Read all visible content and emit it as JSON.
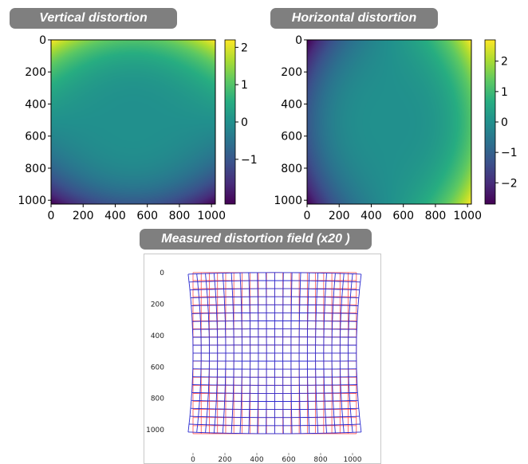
{
  "panels": {
    "vertical": {
      "title": "Vertical distortion"
    },
    "horizontal": {
      "title": "Horizontal distortion"
    },
    "field": {
      "title": "Measured distortion field (x20 )"
    }
  },
  "colormap": [
    "#440154",
    "#472c7a",
    "#3b518b",
    "#2c718e",
    "#21908d",
    "#27ad81",
    "#5cc863",
    "#aadc32",
    "#fde725"
  ],
  "colors": {
    "reference_grid": "#ff4d4d",
    "distorted_grid": "#2a2ad0"
  },
  "chart_data": [
    {
      "type": "heatmap",
      "title": "Vertical distortion",
      "x_ticks": [
        "0",
        "200",
        "400",
        "600",
        "800",
        "1000"
      ],
      "y_ticks": [
        "0",
        "200",
        "400",
        "600",
        "800",
        "1000"
      ],
      "xlim": [
        0,
        1024
      ],
      "ylim": [
        1024,
        0
      ],
      "colorbar_ticks": [
        "2",
        "1",
        "0",
        "−1"
      ],
      "colorbar_values": [
        2,
        1,
        0,
        -1
      ],
      "value_range": [
        -2.2,
        2.2
      ],
      "corner_values": {
        "top_left": 2.2,
        "top_right": 2.2,
        "bottom_left": -2.2,
        "bottom_right": -2.2
      }
    },
    {
      "type": "heatmap",
      "title": "Horizontal distortion",
      "x_ticks": [
        "0",
        "200",
        "400",
        "600",
        "800",
        "1000"
      ],
      "y_ticks": [
        "0",
        "200",
        "400",
        "600",
        "800",
        "1000"
      ],
      "xlim": [
        0,
        1024
      ],
      "ylim": [
        1024,
        0
      ],
      "colorbar_ticks": [
        "2",
        "1",
        "0",
        "−1",
        "−2"
      ],
      "colorbar_values": [
        2,
        1,
        0,
        -1,
        -2
      ],
      "value_range": [
        -2.7,
        2.7
      ],
      "corner_values": {
        "top_left": -2.7,
        "top_right": 2.7,
        "bottom_left": -2.7,
        "bottom_right": 2.7
      }
    },
    {
      "type": "line",
      "title": "Measured distortion field (x20 )",
      "x_ticks": [
        "0",
        "200",
        "400",
        "600",
        "800",
        "1000"
      ],
      "y_ticks": [
        "0",
        "200",
        "400",
        "600",
        "800",
        "1000"
      ],
      "xlim": [
        -60,
        1100
      ],
      "ylim": [
        1080,
        -60
      ],
      "grid_lines": 20,
      "grid_range": [
        0,
        1024
      ],
      "series": [
        {
          "role": "reference",
          "color": "#ff4d4d"
        },
        {
          "role": "distorted",
          "color": "#2a2ad0"
        }
      ]
    }
  ]
}
